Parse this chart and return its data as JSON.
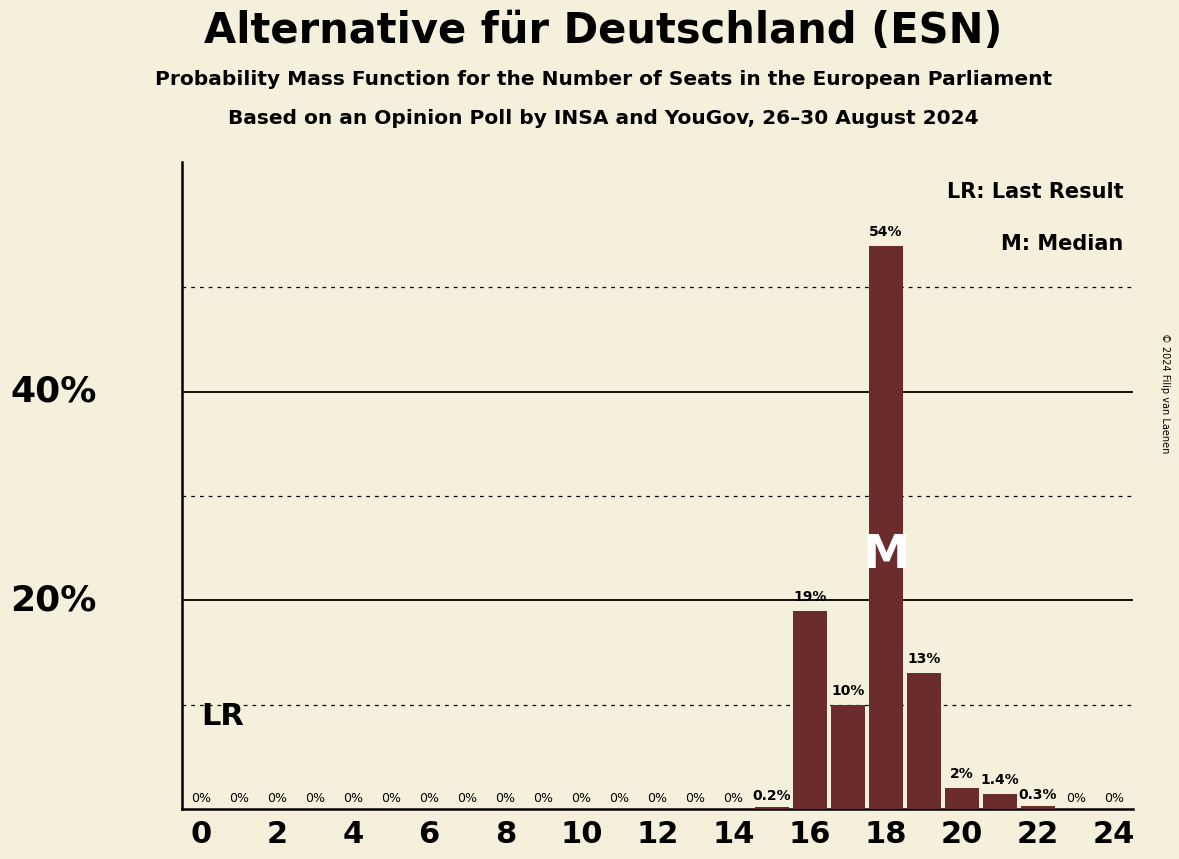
{
  "title": "Alternative für Deutschland (ESN)",
  "subtitle1": "Probability Mass Function for the Number of Seats in the European Parliament",
  "subtitle2": "Based on an Opinion Poll by INSA and YouGov, 26–30 August 2024",
  "copyright": "© 2024 Filip van Laenen",
  "background_color": "#f5f0dc",
  "bar_color": "#6b2c2c",
  "seats": [
    0,
    1,
    2,
    3,
    4,
    5,
    6,
    7,
    8,
    9,
    10,
    11,
    12,
    13,
    14,
    15,
    16,
    17,
    18,
    19,
    20,
    21,
    22,
    23,
    24
  ],
  "probabilities": [
    0.0,
    0.0,
    0.0,
    0.0,
    0.0,
    0.0,
    0.0,
    0.0,
    0.0,
    0.0,
    0.0,
    0.0,
    0.0,
    0.0,
    0.0,
    0.2,
    19.0,
    10.0,
    54.0,
    13.0,
    2.0,
    1.4,
    0.3,
    0.0,
    0.0
  ],
  "labels": [
    "0%",
    "0%",
    "0%",
    "0%",
    "0%",
    "0%",
    "0%",
    "0%",
    "0%",
    "0%",
    "0%",
    "0%",
    "0%",
    "0%",
    "0%",
    "0.2%",
    "19%",
    "10%",
    "54%",
    "13%",
    "2%",
    "1.4%",
    "0.3%",
    "0%",
    "0%"
  ],
  "median_seat": 18,
  "lr_seat": 15,
  "lr_label": "LR",
  "median_label": "M",
  "solid_yticks": [
    20,
    40
  ],
  "dotted_yticks": [
    10,
    30,
    50
  ],
  "ylim": [
    0,
    62
  ],
  "xlim": [
    -0.5,
    24.5
  ],
  "xtick_positions": [
    0,
    2,
    4,
    6,
    8,
    10,
    12,
    14,
    16,
    18,
    20,
    22,
    24
  ],
  "ylabel_20": "20%",
  "ylabel_40": "40%"
}
